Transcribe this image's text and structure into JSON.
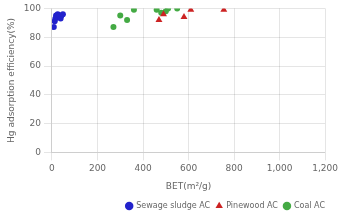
{
  "chart_data": {
    "type": "scatter",
    "xlabel": "BET(m²/g)",
    "ylabel": "Hg adsorption efficiency(%)",
    "series": [
      {
        "name": "Sewage sludge AC",
        "color": "#2222cc",
        "marker": "circle",
        "x": [
          8,
          12,
          15,
          18,
          22,
          25,
          28,
          32,
          38,
          42,
          48
        ],
        "values": [
          87,
          91,
          93,
          95,
          94,
          96,
          94,
          95,
          93,
          95,
          96
        ]
      },
      {
        "name": "Pinewood AC",
        "color": "#cc2222",
        "marker": "triangle",
        "x": [
          470,
          490,
          580,
          610,
          755
        ],
        "values": [
          92,
          96,
          94,
          99,
          99
        ]
      },
      {
        "name": "Coal AC",
        "color": "#44aa44",
        "marker": "circle",
        "x": [
          270,
          300,
          330,
          360,
          460,
          480,
          500,
          510,
          550
        ],
        "values": [
          87,
          95,
          92,
          99,
          99,
          97,
          98,
          100,
          100
        ]
      }
    ],
    "xlim": [
      0,
      1200
    ],
    "ylim": [
      0,
      100
    ],
    "xticks": [
      0,
      200,
      400,
      600,
      800,
      1000,
      1200
    ],
    "yticks": [
      0,
      20,
      40,
      60,
      80,
      100
    ],
    "grid": true,
    "legend": "lower right"
  }
}
